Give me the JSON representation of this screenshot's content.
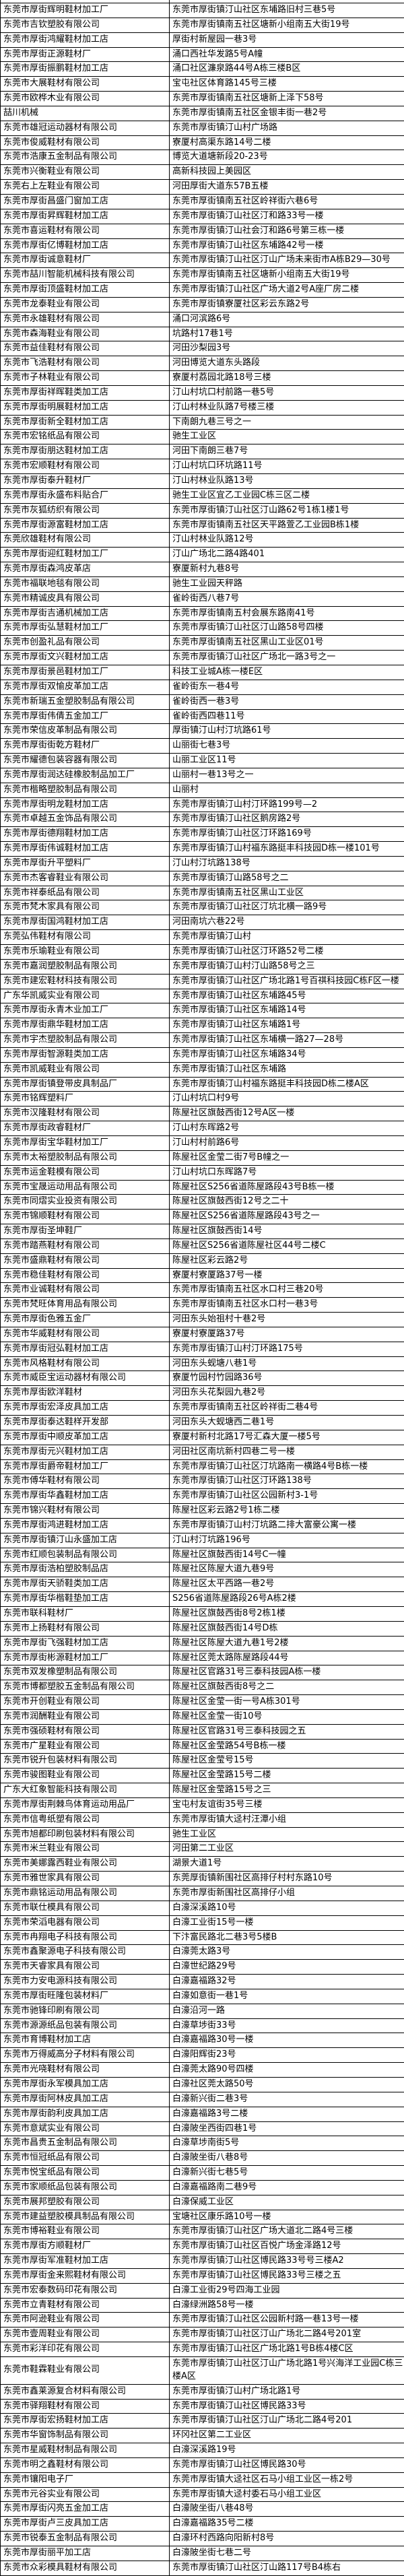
{
  "table": {
    "columns": [
      "company_name",
      "address"
    ],
    "rows": [
      {
        "company": "东莞市厚街辉明鞋材加工厂",
        "address": "东莞市厚街镇汀山社区东埔路旧村三巷5号"
      },
      {
        "company": "东莞市吉钦塑胶有限公司",
        "address": "东莞市厚街镇南五社区塘新小组南五大街19号"
      },
      {
        "company": "东莞市厚街鸿耀鞋材加工店",
        "address": "厚街村新屋园一巷3号"
      },
      {
        "company": "东莞市厚街正源鞋材厂",
        "address": "涌口西社华发路5号A幢"
      },
      {
        "company": "东莞市厚街振鹏鞋材加工店",
        "address": "涌口社区濂泉路44号A栋三楼B区"
      },
      {
        "company": "东莞市大展鞋材有限公司",
        "address": "宝屯社区体育路145号三楼"
      },
      {
        "company": "东莞市欧桦木业有限公司",
        "address": "东莞市厚街镇南五社区塘新上泽下58号"
      },
      {
        "company": "喆川机械",
        "address": "东莞市厚街镇南五社区金银丰街一巷2号"
      },
      {
        "company": "东莞市雄冠运动器材有限公司",
        "address": "东莞市厚街镇汀山村广场路"
      },
      {
        "company": "东莞市俊威鞋材有限公司",
        "address": "寮厦村高渠东路14号二楼"
      },
      {
        "company": "东莞市浩康五金制品有限公司",
        "address": "博览大道塘新段20-23号"
      },
      {
        "company": "东莞市兴衡鞋业有限公司",
        "address": "高新科技园上美园区"
      },
      {
        "company": "东莞右上左鞋业有限公司",
        "address": "河田厚街大道东57B五楼"
      },
      {
        "company": "东莞市厚街昌盛门窗加工店",
        "address": "东莞市厚街镇南五社区岭祥街六巷6号"
      },
      {
        "company": "东莞市厚街昇辉鞋材加工店",
        "address": "东莞市厚街镇汀山社区汀和路33号一楼"
      },
      {
        "company": "东莞市喜运鞋材有限公司",
        "address": "东莞市厚街镇汀山社会汀和路6号第三栋一楼"
      },
      {
        "company": "东莞市厚街亿博鞋材加工店",
        "address": "东莞市厚街镇汀山社区东埔路42号一楼"
      },
      {
        "company": "东莞市厚街诚意鞋材厂",
        "address": "东莞市厚街镇汀山社区汀山广场未来街市A栋B29—30号"
      },
      {
        "company": "东莞市喆川智能机械科技有限公司",
        "address": "东莞市厚街镇南五社区塘新小组南五大街19号"
      },
      {
        "company": "东莞市厚街顶盛鞋材加工店",
        "address": "东莞市厚街镇汀山社区广场大道2号A座厂房二楼"
      },
      {
        "company": "东莞市龙泰鞋业有限公司",
        "address": "东莞市厚街镇寮厦社区彩云东路2号"
      },
      {
        "company": "东莞市永雄鞋材有限公司",
        "address": "涌口河滨路6号"
      },
      {
        "company": "东莞市森海鞋业有限公司",
        "address": "坑路村17巷1号"
      },
      {
        "company": "东莞市益佳鞋材有限公司",
        "address": "河田沙梨园3号"
      },
      {
        "company": "东莞市飞浩鞋材有限公司",
        "address": "河田博览大道东头路段"
      },
      {
        "company": "东莞市子林鞋业有限公司",
        "address": "寮厦村荔园北路18号三楼"
      },
      {
        "company": "东莞市厚街祥晖鞋类加工店",
        "address": "汀山村坑口村前路一巷5号"
      },
      {
        "company": "东莞市厚街明展鞋材加工店",
        "address": "汀山村林业队路7号楼三楼"
      },
      {
        "company": "东莞市厚街新全鞋材加工店",
        "address": "下南朗九巷三号之一"
      },
      {
        "company": "东莞市宏铭纸品有限公司",
        "address": "驰生工业区"
      },
      {
        "company": "东莞市厚街朋达鞋材加工店",
        "address": "河田下南朗三巷7号"
      },
      {
        "company": "东莞市宏顺鞋材有限公司",
        "address": "汀山村坑口环坑路11号"
      },
      {
        "company": "东莞市厚街泰升鞋材厂",
        "address": "汀山村林业队路13号"
      },
      {
        "company": "东莞市厚街永盛布料贴合厂",
        "address": "驰生工业区宜乙工业园C栋三区二楼"
      },
      {
        "company": "东莞市灰狐纺织有限公司",
        "address": "东莞市厚街镇汀山社区汀山路62号1栋1楼1号"
      },
      {
        "company": "东莞市厚街源富鞋材加工店",
        "address": "东莞市厚街镇南五社区天平路萱乙工业园B栋1楼"
      },
      {
        "company": "东莞欣雄鞋材有限公司",
        "address": "汀山村林业队路12号"
      },
      {
        "company": "东莞市厚街迎红鞋材加工厂",
        "address": "汀山广场北二路4路401"
      },
      {
        "company": "东莞市厚街森鸿皮革店",
        "address": "寮厦新村九巷8号"
      },
      {
        "company": "东莞市福联地毯有限公司",
        "address": "驰生工业园天秤路"
      },
      {
        "company": "东莞市精诚皮具有限公司",
        "address": "雀岭街西八巷7号"
      },
      {
        "company": "东莞市厚街吉通机械加工店",
        "address": "东莞市厚街镇南五村会展东路南41号"
      },
      {
        "company": "东莞市厚街弘慧鞋材加工厂",
        "address": "东莞市厚街镇汀山社区汀山路58号四楼"
      },
      {
        "company": "东莞市创盈礼品有限公司",
        "address": "东莞市厚街镇南五社区黑山工业区01号"
      },
      {
        "company": "东莞市厚街文兴鞋材加工店",
        "address": "东莞市厚街镇汀山社区广场北一路3号之一"
      },
      {
        "company": "东莞市厚街景邑鞋材加工厂",
        "address": "科技工业城A栋一楼E区"
      },
      {
        "company": "东莞市厚街双愉皮革加工店",
        "address": "雀岭街东一巷4号"
      },
      {
        "company": "东莞市新瑞五金塑胶制品有限公司",
        "address": "雀岭街西一巷3号"
      },
      {
        "company": "东莞市厚街伟倩五金加工厂",
        "address": "雀岭街西四巷11号"
      },
      {
        "company": "东莞市荣信皮革制品有限公司",
        "address": "厚街镇汀山村汀坑路61号"
      },
      {
        "company": "东莞市厚街街乾方鞋材厂",
        "address": "山丽街七巷3号"
      },
      {
        "company": "东莞市耀德包装容器有限公司",
        "address": "山丽工业区11号"
      },
      {
        "company": "东莞市厚街润达硅橡胶制品加工厂",
        "address": "山丽村一巷13号之一"
      },
      {
        "company": "东莞市楷略塑胶制品有限公司",
        "address": "山丽村"
      },
      {
        "company": "东莞市厚街明龙鞋材加工店",
        "address": "东莞市厚街镇汀山村汀环路199号—2"
      },
      {
        "company": "东莞市卓越五金饰品有限公司",
        "address": "东莞市厚街镇汀山社区鹅房路2号"
      },
      {
        "company": "东莞市厚街德翔鞋材加工店",
        "address": "东莞市厚街镇汀山社区汀环路169号"
      },
      {
        "company": "东莞市厚街伟诚鞋材加工店",
        "address": "东莞市厚街镇汀山村福东路挺丰科技园D栋一楼101号"
      },
      {
        "company": "东莞市厚街升平塑料厂",
        "address": "汀山村汀坑路138号"
      },
      {
        "company": "东莞市杰客睿鞋业有限公司",
        "address": "东莞市厚街镇汀山路58号之二"
      },
      {
        "company": "东莞市祥泰纸品有限公司",
        "address": "东莞市厚街镇南五社区黑山工业区"
      },
      {
        "company": "东莞市梵木家具有限公司",
        "address": "东莞市厚街镇汀山社区汀坑北横一路9号"
      },
      {
        "company": "东莞市厚街国鸿鞋材加工店",
        "address": "河田南坑六巷22号"
      },
      {
        "company": "东莞弘伟鞋材有限公司",
        "address": "东莞市厚街镇汀山村"
      },
      {
        "company": "东莞市乐瑜鞋业有限公司",
        "address": "东莞市厚街镇汀山社区汀环路52号二楼"
      },
      {
        "company": "东莞市嘉润塑胶制品有限公司",
        "address": "东莞市厚街镇汀山村汀山路58号之三"
      },
      {
        "company": "东莞市建宏鞋材科技有限公司",
        "address": "东莞市厚街镇汀山社区广场北路1号百祺科技园C栋F区一楼"
      },
      {
        "company": "广东华凯威实业有限公司",
        "address": "东莞市厚街镇汀山社区东埔路45号"
      },
      {
        "company": "东莞市厚街永青木业加工厂",
        "address": "东莞市厚街镇汀山社区东埔路14号"
      },
      {
        "company": "东莞市厚街鼎华鞋材加工店",
        "address": "东莞市厚街镇汀山社区东埔路1号"
      },
      {
        "company": "东莞市宇杰塑胶制品有限公司",
        "address": "东莞市厚街镇汀山社区东埔横一路27—28号"
      },
      {
        "company": "东莞市厚街智源鞋类加工店",
        "address": "东莞市厚街镇汀山社区东埔路34号"
      },
      {
        "company": "东莞市凯威鞋业有限公司",
        "address": "东莞市厚街镇汀山社区东埔路"
      },
      {
        "company": "东莞市厚街镇登带皮具制品厂",
        "address": "东莞市厚街镇汀山村福东路挺丰科技园D栋二楼A区"
      },
      {
        "company": "东莞市铭辉塑料厂",
        "address": "汀山村坑口村9号"
      },
      {
        "company": "东莞市汉隆鞋材有限公司",
        "address": "陈屋社区旗鼓西街12号A区一楼"
      },
      {
        "company": "东莞市厚街政睿鞋材厂",
        "address": "汀山村东晖路2号"
      },
      {
        "company": "东莞市厚街宝华鞋材加工厂",
        "address": "汀山村村前路6号"
      },
      {
        "company": "东莞市太裕塑胶制品有限公司",
        "address": "陈屋社区金莹二街7号B幢之一"
      },
      {
        "company": "东莞市运金鞋模有限公司",
        "address": "汀山村坑口东晖路7号"
      },
      {
        "company": "东莞市宝晟运动用品有限公司",
        "address": "陈屋社区S256省道陈屋路段43号B栋一楼"
      },
      {
        "company": "东莞市同熠实业投资有限公司",
        "address": "陈屋社区旗鼓西街12号之二十"
      },
      {
        "company": "东莞市锦顺鞋材有限公司",
        "address": "陈屋社区S256省道陈屋路段43号之一"
      },
      {
        "company": "东莞市厚街圣坤鞋厂",
        "address": "陈屋社区旗鼓西街14号"
      },
      {
        "company": "东莞市踏燕鞋材有限公司",
        "address": "陈屋社区S256省道陈屋社区44号二楼C"
      },
      {
        "company": "东莞市盛鼎鞋材有限公司",
        "address": "陈屋社区彩云路2号"
      },
      {
        "company": "东莞市稳佳鞋材有限公司",
        "address": "寮厦村寮厦路37号一楼"
      },
      {
        "company": "东莞市业诚鞋材有限公司",
        "address": "东莞市厚街镇南五社区水口村三巷20号"
      },
      {
        "company": "东莞市梵旺体育用品有限公司",
        "address": "东莞市厚街镇南五社区水口村一巷3号"
      },
      {
        "company": "东莞市厚街色雅五金厂",
        "address": "河田东头始祖村十巷2号"
      },
      {
        "company": "东莞市华威鞋材有限公司",
        "address": "寮厦村寮厦路37号"
      },
      {
        "company": "东莞市厚街冠弘鞋材加工店",
        "address": "东莞市厚街镇汀山村汀环路175号"
      },
      {
        "company": "东莞市风格鞋材有限公司",
        "address": "河田东头蚬塘八巷1号"
      },
      {
        "company": "东莞市威臣宝运动器材有限公司",
        "address": "寮厦竹园村竹园路36号"
      },
      {
        "company": "东莞市厚街欧洋鞋材",
        "address": "河田东头花梨园九巷2号"
      },
      {
        "company": "东莞市厚街宏泽皮具加工店",
        "address": "东莞市厚街镇南五社区岭祥街二巷4号"
      },
      {
        "company": "东莞市厚街泰达鞋样开发部",
        "address": "河田东头大蚬塘西二巷1号"
      },
      {
        "company": "东莞市厚街中顺皮革加工店",
        "address": "寮厦村新村北路17号汇森大厦一楼5号"
      },
      {
        "company": "东莞市厚街元兴鞋材加工店",
        "address": "河田社区南坑新村四巷二号一楼"
      },
      {
        "company": "东莞市厚街爵帝鞋材加工厂",
        "address": "东莞市厚街镇汀山社区汀坑路南一横路4号B栋一楼"
      },
      {
        "company": "东莞市傅华鞋材有限公司",
        "address": "东莞市厚街镇汀山社区汀环路138号"
      },
      {
        "company": "东莞市厚街华鑫鞋材加工店",
        "address": "东莞市厚街镇汀山社区公园新村3-1号"
      },
      {
        "company": "东莞市锦兴鞋材有限公司",
        "address": "陈屋社区彩云路2号1栋二楼"
      },
      {
        "company": "东莞市厚街鸿进鞋材加工店",
        "address": "东莞市厚街镇汀山村汀坑路二排大富豪公寓一楼"
      },
      {
        "company": "东莞市厚街镇汀山永盛加工店",
        "address": "汀山村汀坑路196号"
      },
      {
        "company": "东莞市红顺包装制品有限公司",
        "address": "陈屋社区旗鼓西街14号C一幢"
      },
      {
        "company": "东莞市厚街浩柏塑胶制品店",
        "address": "陈屋社区陈屋大道九巷9号"
      },
      {
        "company": "东莞市厚街天骄鞋类加工店",
        "address": "陈屋社区太平西路一巷2号"
      },
      {
        "company": "东莞市厚街华楷鞋垫加工店",
        "address": "S256省道陈屋路段26号A栋2楼"
      },
      {
        "company": "东莞市联科鞋材厂",
        "address": "陈屋社区旗鼓西街8号2栋1楼"
      },
      {
        "company": "东莞市上扬鞋材有限公司",
        "address": "陈屋社区旗鼓西街14号D栋"
      },
      {
        "company": "东莞市厚街飞强鞋材加工店",
        "address": "陈屋社区陈屋大道九巷1号2楼"
      },
      {
        "company": "东莞市厚街彬源鞋材加工厂",
        "address": "陈屋社区莞太路陈屋路段44号"
      },
      {
        "company": "东莞市双发橡塑制品有限公司",
        "address": "陈屋社区官路31号三泰科技园A栋一楼"
      },
      {
        "company": "东莞市博都塑胶五金制品有限公司",
        "address": "陈屋社区旗鼓西街8号之二"
      },
      {
        "company": "东莞市开创鞋业有限公司",
        "address": "陈屋社区金莹一街一号A栋301号"
      },
      {
        "company": "东莞市润酬鞋业有限公司",
        "address": "陈屋社区金莹一街10号"
      },
      {
        "company": "东莞市强硕鞋材有限公司",
        "address": "陈屋社区官路31号三泰科技园之五"
      },
      {
        "company": "东莞市广星鞋业有限公司",
        "address": "陈屋社区金莹路54号B栋一楼"
      },
      {
        "company": "东莞市锐升包装材料有限公司",
        "address": "陈屋社区金莹号15号"
      },
      {
        "company": "东莞市骏图鞋业有限公司",
        "address": "陈屋社区金莹路15号二楼"
      },
      {
        "company": "广东大红象智能科技有限公司",
        "address": "陈屋社区金莹路15号之三"
      },
      {
        "company": "东莞市厚街荆棘鸟体育运动用品厂",
        "address": "宝屯村友谊街35号三楼"
      },
      {
        "company": "东莞市信粤纸塑有限公司",
        "address": "东莞市厚街镇大迳村汪潭小组"
      },
      {
        "company": "东莞市旭都印刷包装材料有限公司",
        "address": "驰生工业区"
      },
      {
        "company": "东莞市米兰鞋业有限公司",
        "address": "河田第二工业区"
      },
      {
        "company": "东莞市美娜露西鞋业有限公司",
        "address": "湖景大道1号"
      },
      {
        "company": "东莞市雅世家具有限公司",
        "address": "东莞厚街镇新围社区高排仔村村东路10号"
      },
      {
        "company": "东莞市鼎铭运动用品有限公司",
        "address": "东莞市厚街新围社区高排仔小组"
      },
      {
        "company": "东莞市联仕模具有限公司",
        "address": "白濠深溪路10号"
      },
      {
        "company": "东莞市荣滔电器有限公司",
        "address": "白濠工业街15号一楼"
      },
      {
        "company": "东莞市冉翔电子科技有限公司",
        "address": "下汴富民路北二巷3号5楼B"
      },
      {
        "company": "东莞市鑫聚源电子科技有限公司",
        "address": "白濠莞太路3号"
      },
      {
        "company": "东莞市天睿家具有限公司",
        "address": "白濠世纪路29号"
      },
      {
        "company": "东莞市力安电源科技有限公司",
        "address": "白濠嘉福路32号"
      },
      {
        "company": "东莞市厚街旺隆包装材料厂",
        "address": "白濠如意街一巷1号"
      },
      {
        "company": "东莞市驰锋印刷有限公司",
        "address": "白濠沿河一路"
      },
      {
        "company": "东莞市源源纸品包装有限公司",
        "address": "白濠草埗街33号"
      },
      {
        "company": "东莞市育博鞋材加工店",
        "address": "白濠嘉福路30号一楼"
      },
      {
        "company": "东莞市万得威高分子材料有限公司",
        "address": "白濠阳辉街23号"
      },
      {
        "company": "东莞市光哓鞋材有限公司",
        "address": "白濠莞太路90号四楼"
      },
      {
        "company": "东莞市厚街永军模具加工店",
        "address": "白濠社区莞太路50号"
      },
      {
        "company": "东莞市厚街阿林皮具加工店",
        "address": "白濠新兴街二巷3号"
      },
      {
        "company": "东莞市厚街韵利皮具加工店",
        "address": "白濠嘉福路3号二楼"
      },
      {
        "company": "东莞市意斌实业有限公司",
        "address": "白濠陂坐西街四巷1号"
      },
      {
        "company": "东莞市昌贵五金制品有限公司",
        "address": "白濠草埗南街5号"
      },
      {
        "company": "东莞市恒冠纸品有限公司",
        "address": "白濠陂坐街八巷8号"
      },
      {
        "company": "东莞市悦宝纸品有限公司",
        "address": "白濠新兴街七巷5号"
      },
      {
        "company": "东莞市家顺纸品包装有限公司",
        "address": "白濠嘉福路南二巷9号"
      },
      {
        "company": "东莞市展邦塑胶有限公司",
        "address": "白濠保威工业区"
      },
      {
        "company": "东莞市建益塑胶模具制品有限公司",
        "address": "宝塘社区康乐路10号一楼"
      },
      {
        "company": "东莞市博裕鞋业有限公司",
        "address": "东莞市厚街镇汀山社区广场大道北二路4号三楼"
      },
      {
        "company": "东莞市厚街方顺鞋材厂",
        "address": "东莞市厚街镇汀山社区百悦广场金泽路12号"
      },
      {
        "company": "东莞市厚街军准鞋材加工店",
        "address": "东莞市厚街镇汀山社区博民路33号号三楼A2"
      },
      {
        "company": "东莞市厚街金来熙鞋材有限公司",
        "address": "东莞市厚街镇汀山社区博民路33号三楼之五"
      },
      {
        "company": "东莞市宏泰数码印花有限公司",
        "address": "白濠工业街29号四海工业园"
      },
      {
        "company": "东莞市立青鞋材有限公司",
        "address": "白濠绿洲路58号一楼"
      },
      {
        "company": "东莞市阿逊鞋业有限公司",
        "address": "东莞市厚街镇汀山社区公园新村路一巷13号一楼"
      },
      {
        "company": "东莞市壹周鞋业有限公司",
        "address": "东莞市厚街镇汀山社区汀山广场北二路4号201室"
      },
      {
        "company": "东莞市彩洋印花有限公司",
        "address": "东莞市厚街镇汀山社区广场北路1号B栋4楼C区"
      },
      {
        "company": "东莞市鞋霖鞋业有限公司",
        "address": "东莞市厚街镇汀山社区汀山广场北路1号兴海洋工业园C栋三楼A区"
      },
      {
        "company": "东莞市鑫莱源复合材料有限公司",
        "address": "东莞市厚街镇汀山村广场北路1号"
      },
      {
        "company": "东莞市驿翔鞋材有限公司",
        "address": "东莞市厚街镇汀山社区博民路33号"
      },
      {
        "company": "东莞市厚街宏扬鞋材加工店",
        "address": "东莞市厚街镇汀山社区汀山广场北二路4号201"
      },
      {
        "company": "东莞市华窗饰制品有限公司",
        "address": "环冈社区第二工业区"
      },
      {
        "company": "东莞市星威鞋材制品有限公司",
        "address": "白濠深溪路19号"
      },
      {
        "company": "东莞市明之鑫鞋材有限公司",
        "address": "东莞市厚街镇汀山社区博民路30号"
      },
      {
        "company": "东莞市镶阳电子厂",
        "address": "东莞市厚街镇大迳社区石马小组工业区一栋2号"
      },
      {
        "company": "东莞市元谷实业有限公司",
        "address": "东莞市厚街镇大迳村委石马小组工业区"
      },
      {
        "company": "东莞市厚街闪亮五金加工店",
        "address": "白濠陂坐街八巷48号"
      },
      {
        "company": "东莞市厚街卢三皮具加工店",
        "address": "白濠嘉福路35号二楼"
      },
      {
        "company": "东莞市锐泰五金制品有限公司",
        "address": "白濠环村西路向阳新村8号"
      },
      {
        "company": "东莞市厚街丽平加工店",
        "address": "白濠陂坐街七巷二号"
      },
      {
        "company": "东莞市众彩模具鞋材有限公司",
        "address": "东莞市厚街镇汀山社区汀山路117号B4栋右"
      }
    ]
  }
}
